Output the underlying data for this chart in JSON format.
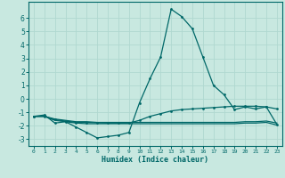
{
  "xlabel": "Humidex (Indice chaleur)",
  "background_color": "#c8e8e0",
  "grid_color": "#b0d8d0",
  "line_color": "#006868",
  "xlim": [
    -0.5,
    23.5
  ],
  "ylim": [
    -3.5,
    7.2
  ],
  "yticks": [
    -3,
    -2,
    -1,
    0,
    1,
    2,
    3,
    4,
    5,
    6
  ],
  "xticks": [
    0,
    1,
    2,
    3,
    4,
    5,
    6,
    7,
    8,
    9,
    10,
    11,
    12,
    13,
    14,
    15,
    16,
    17,
    18,
    19,
    20,
    21,
    22,
    23
  ],
  "line1_x": [
    0,
    1,
    2,
    3,
    4,
    5,
    6,
    7,
    8,
    9,
    10,
    11,
    12,
    13,
    14,
    15,
    16,
    17,
    18,
    19,
    20,
    21,
    22,
    23
  ],
  "line1_y": [
    -1.3,
    -1.2,
    -1.8,
    -1.7,
    -2.1,
    -2.5,
    -2.9,
    -2.8,
    -2.7,
    -2.5,
    -0.3,
    1.5,
    3.1,
    6.65,
    6.1,
    5.2,
    3.1,
    1.0,
    0.3,
    -0.8,
    -0.6,
    -0.75,
    -0.6,
    -1.9
  ],
  "line2_x": [
    0,
    1,
    2,
    3,
    4,
    5,
    6,
    7,
    8,
    9,
    10,
    11,
    12,
    13,
    14,
    15,
    16,
    17,
    18,
    19,
    20,
    21,
    22,
    23
  ],
  "line2_y": [
    -1.3,
    -1.3,
    -1.5,
    -1.6,
    -1.7,
    -1.7,
    -1.75,
    -1.75,
    -1.75,
    -1.75,
    -1.75,
    -1.75,
    -1.75,
    -1.75,
    -1.75,
    -1.75,
    -1.75,
    -1.75,
    -1.75,
    -1.75,
    -1.7,
    -1.7,
    -1.65,
    -1.8
  ],
  "line3_x": [
    0,
    1,
    2,
    3,
    4,
    5,
    6,
    7,
    8,
    9,
    10,
    11,
    12,
    13,
    14,
    15,
    16,
    17,
    18,
    19,
    20,
    21,
    22,
    23
  ],
  "line3_y": [
    -1.3,
    -1.3,
    -1.6,
    -1.7,
    -1.8,
    -1.85,
    -1.85,
    -1.85,
    -1.85,
    -1.85,
    -1.85,
    -1.85,
    -1.85,
    -1.85,
    -1.85,
    -1.85,
    -1.85,
    -1.85,
    -1.85,
    -1.85,
    -1.8,
    -1.8,
    -1.75,
    -1.95
  ],
  "line4_x": [
    0,
    1,
    2,
    3,
    4,
    5,
    6,
    7,
    8,
    9,
    10,
    11,
    12,
    13,
    14,
    15,
    16,
    17,
    18,
    19,
    20,
    21,
    22,
    23
  ],
  "line4_y": [
    -1.3,
    -1.3,
    -1.55,
    -1.65,
    -1.75,
    -1.75,
    -1.78,
    -1.8,
    -1.8,
    -1.8,
    -1.6,
    -1.3,
    -1.1,
    -0.9,
    -0.8,
    -0.75,
    -0.7,
    -0.65,
    -0.6,
    -0.55,
    -0.55,
    -0.55,
    -0.6,
    -0.75
  ]
}
